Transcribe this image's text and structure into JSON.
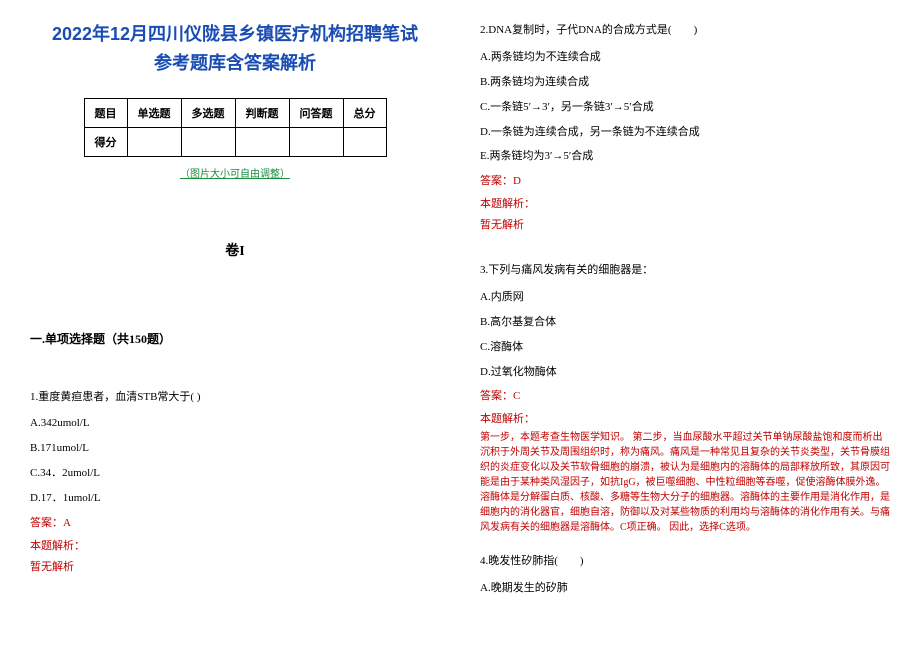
{
  "title": {
    "line1": "2022年12月四川仪陇县乡镇医疗机构招聘笔试",
    "line2": "参考题库含答案解析",
    "color": "#1a4db3",
    "fontsize": 18
  },
  "score_table": {
    "headers": [
      "题目",
      "单选题",
      "多选题",
      "判断题",
      "问答题",
      "总分"
    ],
    "row_label": "得分"
  },
  "image_note": "（图片大小可自由调整）",
  "image_note_color": "#1a8c3a",
  "volume": "卷I",
  "section_header": "一.单项选择题（共150题）",
  "questions": {
    "q1": {
      "stem": "1.重度黄疸患者，血清STB常大于( )",
      "options": [
        "A.342umol/L",
        "B.171umol/L",
        "C.34．2umol/L",
        "D.17．1umol/L"
      ],
      "answer_label": "答案：A",
      "explain_label": "本题解析：",
      "explain_body": "暂无解析"
    },
    "q2": {
      "stem": "2.DNA复制时，子代DNA的合成方式是(　　)",
      "options": [
        "A.两条链均为不连续合成",
        "B.两条链均为连续合成",
        "C.一条链5′→3′，另一条链3′→5′合成",
        "D.一条链为连续合成，另一条链为不连续合成",
        "E.两条链均为3′→5′合成"
      ],
      "answer_label": "答案：D",
      "explain_label": "本题解析：",
      "explain_body": "暂无解析"
    },
    "q3": {
      "stem": "3.下列与痛风发病有关的细胞器是：",
      "options": [
        "A.内质网",
        "B.高尔基复合体",
        "C.溶酶体",
        "D.过氧化物酶体"
      ],
      "answer_label": "答案：C",
      "explain_label": "本题解析：",
      "explain_body": "第一步，本题考查生物医学知识。\n第二步，当血尿酸水平超过关节单钠尿酸盐饱和度而析出沉积于外周关节及周围组织时，称为痛风。痛风是一种常见且复杂的关节炎类型，关节骨膜组织的炎症变化以及关节软骨细胞的崩溃，被认为是细胞内的溶酶体的局部释放所致，其原因可能是由于某种类风湿因子，如抗IgG，被巨噬细胞、中性粒细胞等吞噬，促使溶酶体膜外逸。溶酶体是分解蛋白质、核酸、多糖等生物大分子的细胞器。溶酶体的主要作用是消化作用，是细胞内的消化器官，细胞自溶，防御以及对某些物质的利用均与溶酶体的消化作用有关。与痛风发病有关的细胞器是溶酶体。C项正确。\n因此，选择C选项。"
    },
    "q4": {
      "stem": "4.晚发性矽肺指(　　)",
      "options_partial": [
        "A.晚期发生的矽肺"
      ]
    }
  },
  "colors": {
    "answer_red": "#c00000",
    "text_black": "#000000",
    "background": "#ffffff"
  }
}
